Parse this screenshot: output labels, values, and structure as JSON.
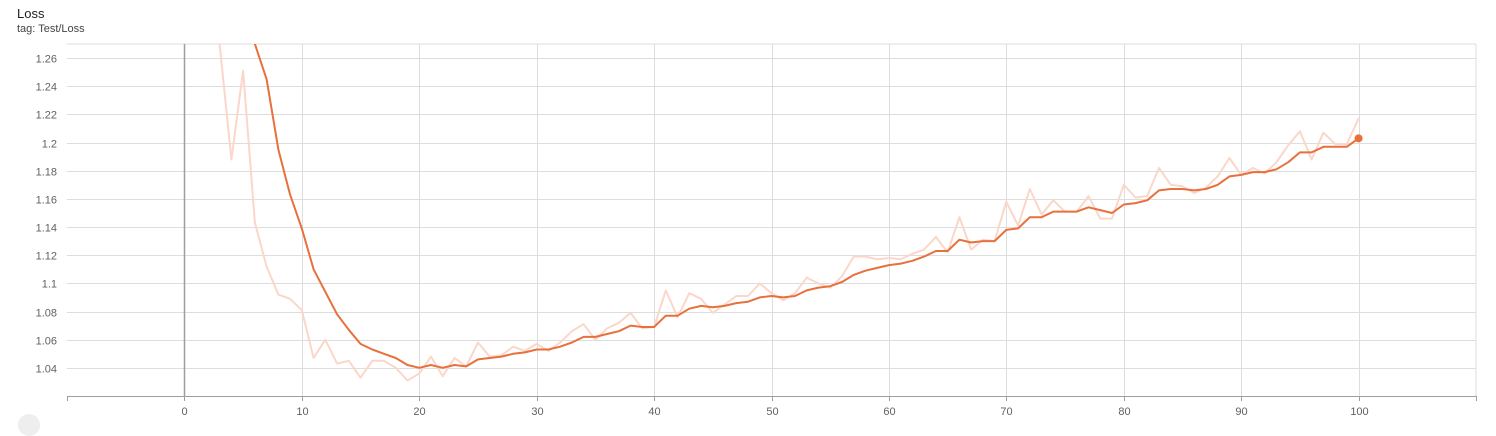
{
  "card": {
    "title": "Loss",
    "tag_line": "tag: Test/Loss"
  },
  "chart_data": {
    "type": "line",
    "title": "Loss",
    "xlabel": "",
    "ylabel": "",
    "xlim": [
      -10,
      110
    ],
    "ylim": [
      1.02,
      1.27
    ],
    "grid": true,
    "x_ticks": [
      0,
      10,
      20,
      30,
      40,
      50,
      60,
      70,
      80,
      90,
      100
    ],
    "y_ticks": [
      1.04,
      1.06,
      1.08,
      1.1,
      1.12,
      1.14,
      1.16,
      1.18,
      1.2,
      1.22,
      1.24,
      1.26
    ],
    "y_tick_labels": [
      "1.04",
      "1.06",
      "1.08",
      "1.1",
      "1.12",
      "1.14",
      "1.16",
      "1.18",
      "1.2",
      "1.22",
      "1.24",
      "1.26"
    ],
    "colors": {
      "smoothed": "#e8703c",
      "raw": "#fad7ca",
      "grid": "#dddddd",
      "zero_axis": "#9e9e9e"
    },
    "series": [
      {
        "role": "raw",
        "x": [
          3,
          4,
          5,
          6,
          7,
          8,
          9,
          10,
          11,
          12,
          13,
          14,
          15,
          16,
          17,
          18,
          19,
          20,
          21,
          22,
          23,
          24,
          25,
          26,
          27,
          28,
          29,
          30,
          31,
          32,
          33,
          34,
          35,
          36,
          37,
          38,
          39,
          40,
          41,
          42,
          43,
          44,
          45,
          46,
          47,
          48,
          49,
          50,
          51,
          52,
          53,
          54,
          55,
          56,
          57,
          58,
          59,
          60,
          61,
          62,
          63,
          64,
          65,
          66,
          67,
          68,
          69,
          70,
          71,
          72,
          73,
          74,
          75,
          76,
          77,
          78,
          79,
          80,
          81,
          82,
          83,
          84,
          85,
          86,
          87,
          88,
          89,
          90,
          91,
          92,
          93,
          94,
          95,
          96,
          97,
          98,
          99,
          100
        ],
        "y": [
          1.27,
          1.188,
          1.251,
          1.143,
          1.112,
          1.092,
          1.089,
          1.081,
          1.047,
          1.06,
          1.043,
          1.045,
          1.033,
          1.045,
          1.045,
          1.04,
          1.031,
          1.036,
          1.048,
          1.034,
          1.047,
          1.041,
          1.058,
          1.048,
          1.049,
          1.055,
          1.052,
          1.057,
          1.052,
          1.058,
          1.066,
          1.071,
          1.06,
          1.068,
          1.072,
          1.079,
          1.068,
          1.069,
          1.095,
          1.076,
          1.093,
          1.089,
          1.079,
          1.085,
          1.091,
          1.091,
          1.1,
          1.093,
          1.088,
          1.093,
          1.104,
          1.1,
          1.097,
          1.105,
          1.119,
          1.119,
          1.117,
          1.118,
          1.117,
          1.121,
          1.124,
          1.133,
          1.122,
          1.147,
          1.124,
          1.131,
          1.13,
          1.158,
          1.141,
          1.167,
          1.149,
          1.159,
          1.151,
          1.151,
          1.162,
          1.146,
          1.146,
          1.17,
          1.161,
          1.162,
          1.182,
          1.17,
          1.169,
          1.164,
          1.168,
          1.176,
          1.189,
          1.177,
          1.182,
          1.178,
          1.186,
          1.198,
          1.208,
          1.188,
          1.207,
          1.199,
          1.199,
          1.217
        ]
      },
      {
        "role": "smoothed",
        "x": [
          6,
          7,
          8,
          9,
          10,
          11,
          12,
          13,
          14,
          15,
          16,
          17,
          18,
          19,
          20,
          21,
          22,
          23,
          24,
          25,
          26,
          27,
          28,
          29,
          30,
          31,
          32,
          33,
          34,
          35,
          36,
          37,
          38,
          39,
          40,
          41,
          42,
          43,
          44,
          45,
          46,
          47,
          48,
          49,
          50,
          51,
          52,
          53,
          54,
          55,
          56,
          57,
          58,
          59,
          60,
          61,
          62,
          63,
          64,
          65,
          66,
          67,
          68,
          69,
          70,
          71,
          72,
          73,
          74,
          75,
          76,
          77,
          78,
          79,
          80,
          81,
          82,
          83,
          84,
          85,
          86,
          87,
          88,
          89,
          90,
          91,
          92,
          93,
          94,
          95,
          96,
          97,
          98,
          99,
          100
        ],
        "y": [
          1.27,
          1.245,
          1.195,
          1.163,
          1.139,
          1.11,
          1.094,
          1.078,
          1.067,
          1.057,
          1.053,
          1.05,
          1.047,
          1.042,
          1.04,
          1.042,
          1.04,
          1.042,
          1.041,
          1.046,
          1.047,
          1.048,
          1.05,
          1.051,
          1.053,
          1.053,
          1.055,
          1.058,
          1.062,
          1.062,
          1.064,
          1.066,
          1.07,
          1.069,
          1.069,
          1.077,
          1.077,
          1.082,
          1.084,
          1.083,
          1.084,
          1.086,
          1.087,
          1.09,
          1.091,
          1.09,
          1.091,
          1.095,
          1.097,
          1.098,
          1.101,
          1.106,
          1.109,
          1.111,
          1.113,
          1.114,
          1.116,
          1.119,
          1.123,
          1.123,
          1.131,
          1.129,
          1.13,
          1.13,
          1.138,
          1.139,
          1.147,
          1.147,
          1.151,
          1.151,
          1.151,
          1.154,
          1.152,
          1.15,
          1.156,
          1.157,
          1.159,
          1.166,
          1.167,
          1.167,
          1.166,
          1.167,
          1.17,
          1.176,
          1.177,
          1.179,
          1.179,
          1.181,
          1.186,
          1.193,
          1.193,
          1.197,
          1.197,
          1.197,
          1.203
        ]
      }
    ]
  }
}
